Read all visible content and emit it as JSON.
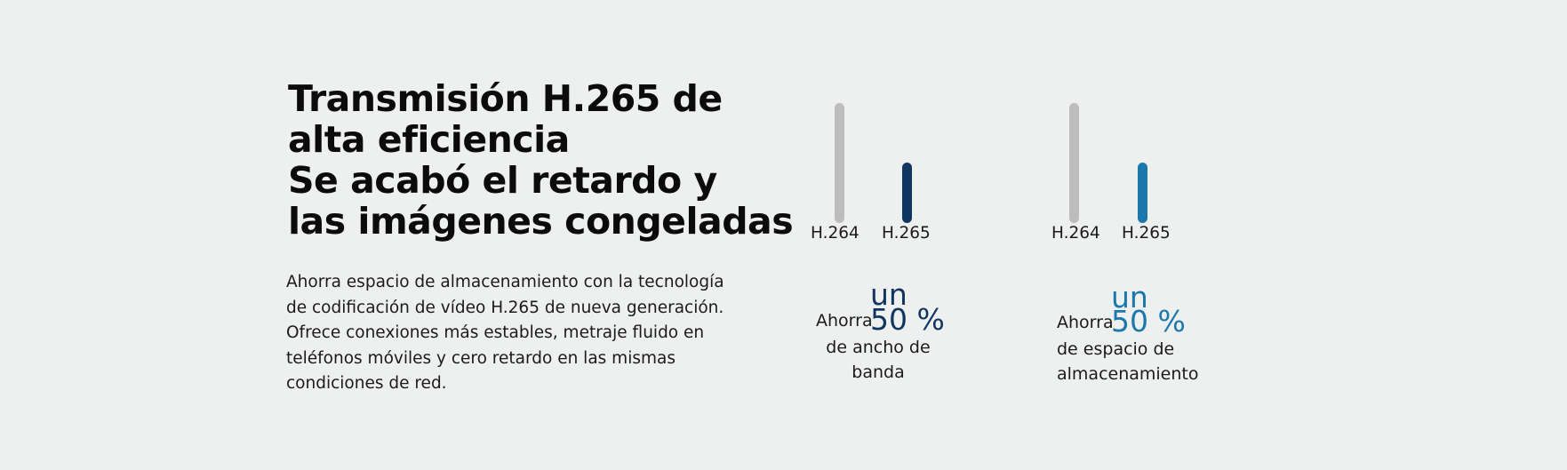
{
  "headline": {
    "lines": [
      "Transmisión H.265 de",
      "alta eficiencia",
      "Se acabó el retardo y",
      "las imágenes congeladas"
    ]
  },
  "description": {
    "lines": [
      "Ahorra espacio de almacenamiento con la tecnología",
      "de codificación de vídeo H.265 de nueva generación.",
      "Ofrece conexiones más estables, metraje fluido en",
      "teléfonos móviles y cero retardo en las mismas",
      "condiciones de red."
    ]
  },
  "colors": {
    "h264_bar": "#bdbdbd",
    "bandwidth_accent": "#10355e",
    "storage_accent": "#1a78aa"
  },
  "chart_data": [
    {
      "type": "bar",
      "categories": [
        "H.264",
        "H.265"
      ],
      "values": [
        100,
        50
      ],
      "unit": "%"
    },
    {
      "type": "bar",
      "categories": [
        "H.264",
        "H.265"
      ],
      "values": [
        100,
        50
      ],
      "unit": "%"
    }
  ],
  "stats": {
    "bandwidth": {
      "prefix": "Ahorra",
      "un": "un",
      "value": "50 %",
      "lines": [
        "de ancho de",
        "banda"
      ]
    },
    "storage": {
      "prefix": "Ahorra",
      "un": "un",
      "value": "50 %",
      "lines": [
        "de espacio de",
        "almacenamiento"
      ]
    }
  }
}
